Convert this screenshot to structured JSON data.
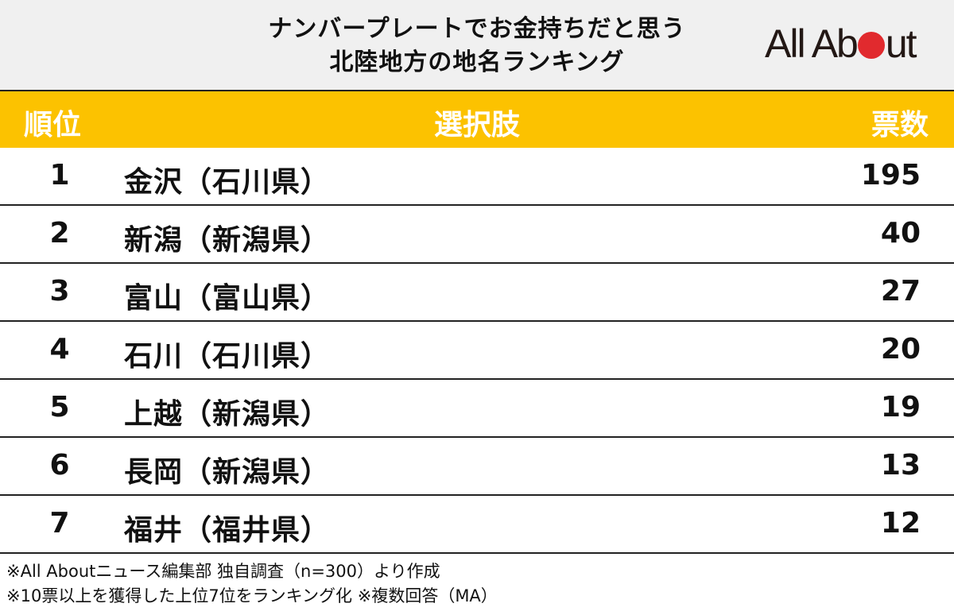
{
  "title": {
    "line1": "ナンバープレートでお金持ちだと思う",
    "line2": "北陸地方の地名ランキング"
  },
  "logo": {
    "text_before": "All Ab",
    "text_after": "ut",
    "dot_color": "#e12a2e"
  },
  "table": {
    "header": {
      "rank": "順位",
      "choice": "選択肢",
      "votes": "票数",
      "background": "#fcc200"
    },
    "rows": [
      {
        "rank": "1",
        "choice": "金沢（石川県）",
        "votes": "195"
      },
      {
        "rank": "2",
        "choice": "新潟（新潟県）",
        "votes": "40"
      },
      {
        "rank": "3",
        "choice": "富山（富山県）",
        "votes": "27"
      },
      {
        "rank": "4",
        "choice": "石川（石川県）",
        "votes": "20"
      },
      {
        "rank": "5",
        "choice": "上越（新潟県）",
        "votes": "19"
      },
      {
        "rank": "6",
        "choice": "長岡（新潟県）",
        "votes": "13"
      },
      {
        "rank": "7",
        "choice": "福井（福井県）",
        "votes": "12"
      }
    ]
  },
  "footer": {
    "note1": "※All Aboutニュース編集部 独自調査（n=300）より作成",
    "note2": "※10票以上を獲得した上位7位をランキング化 ※複数回答（MA）"
  }
}
